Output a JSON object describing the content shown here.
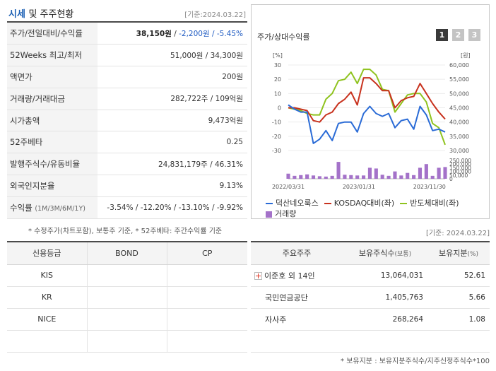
{
  "summary": {
    "title_accent": "시세",
    "title_rest": "및 주주현황",
    "date": "[기준:2024.03.22]",
    "rows": [
      {
        "label": "주가/전일대비/수익률",
        "v1": "38,150원",
        "v2": "-2,200원",
        "v3": "-5.45%"
      },
      {
        "label": "52Weeks 최고/최저",
        "value": "51,000원 / 34,300원"
      },
      {
        "label": "액면가",
        "value": "200원"
      },
      {
        "label": "거래량/거래대금",
        "value": "282,722주 / 109억원"
      },
      {
        "label": "시가총액",
        "value": "9,473억원"
      },
      {
        "label": "52주베타",
        "value": "0.25"
      },
      {
        "label": "발행주식수/유동비율",
        "value": "24,831,179주 / 46.31%"
      },
      {
        "label": "외국인지분율",
        "value": "9.13%"
      },
      {
        "label": "수익률",
        "label_small": "(1M/3M/6M/1Y)",
        "value": "-3.54% / -12.20% / -13.10% / -9.92%"
      }
    ],
    "footnote": "* 수정주가(차트포함), 보통주 기준, * 52주베타: 주간수익률 기준"
  },
  "chart_panel": {
    "title": "주가/상대수익률",
    "tabs": [
      "1",
      "2",
      "3"
    ],
    "legend": {
      "company": "덕산네오룩스",
      "kosdaq": "KOSDAQ대비(좌)",
      "semis": "반도체대비(좌)",
      "volume": "거래량"
    },
    "colors": {
      "company": "#2a6bd6",
      "kosdaq": "#c8321e",
      "semis": "#8fc31f",
      "volume": "#a472c9"
    }
  },
  "chart_data": {
    "type": "line",
    "x_ticks": [
      "2022/03/31",
      "2023/01/31",
      "2023/11/30"
    ],
    "left_axis": {
      "unit": "[%]",
      "ticks": [
        30,
        20,
        10,
        0,
        -10,
        -20,
        -30
      ],
      "range": [
        -30,
        30
      ]
    },
    "right_axis": {
      "unit": "[원]",
      "ticks": [
        60000,
        55000,
        50000,
        45000,
        40000,
        35000,
        30000
      ],
      "range": [
        30000,
        60000
      ]
    },
    "volume_axis": {
      "ticks": [
        250000,
        200000,
        150000,
        100000,
        50000,
        0
      ],
      "range": [
        0,
        250000
      ]
    },
    "series": [
      {
        "name": "덕산네오룩스",
        "axis": "right",
        "values": [
          46000,
          44500,
          43500,
          43500,
          32500,
          34000,
          37000,
          33500,
          39500,
          40000,
          40000,
          36500,
          43000,
          45500,
          43000,
          42000,
          43000,
          38000,
          40500,
          41000,
          37500,
          45500,
          42500,
          37000,
          37500,
          36500
        ]
      },
      {
        "name": "KOSDAQ대비(좌)",
        "axis": "left",
        "values": [
          0,
          0,
          -1,
          -2,
          -9,
          -10,
          -5,
          -3,
          3,
          6,
          11,
          2,
          21,
          21,
          17,
          12,
          12,
          0,
          5,
          7,
          8,
          17,
          10,
          3,
          -3,
          -8
        ]
      },
      {
        "name": "반도체대비(좌)",
        "axis": "left",
        "values": [
          0,
          -1,
          -2,
          -4,
          -5,
          -5,
          6,
          10,
          19,
          20,
          25,
          17,
          27,
          27,
          23,
          13,
          12,
          -3,
          3,
          9,
          10,
          10,
          4,
          -11,
          -14,
          -26
        ]
      },
      {
        "name": "거래량",
        "axis": "volume",
        "type": "bar",
        "values": [
          70000,
          40000,
          50000,
          60000,
          45000,
          35000,
          30000,
          40000,
          230000,
          55000,
          50000,
          45000,
          45000,
          150000,
          140000,
          55000,
          40000,
          100000,
          45000,
          80000,
          50000,
          150000,
          200000,
          40000,
          150000,
          160000
        ]
      }
    ]
  },
  "credit": {
    "headers": [
      "신용등급",
      "BOND",
      "CP"
    ],
    "rows": [
      [
        "KIS",
        "",
        ""
      ],
      [
        "KR",
        "",
        ""
      ],
      [
        "NICE",
        "",
        ""
      ],
      [
        "",
        "",
        ""
      ]
    ]
  },
  "holders": {
    "date": "[기준: 2024.03.22]",
    "headers": {
      "h1": "주요주주",
      "h2": "보유주식수",
      "h2_small": "(보통)",
      "h3": "보유지분",
      "h3_small": "(%)"
    },
    "rows": [
      {
        "name": "이준호 외 14인",
        "shares": "13,064,031",
        "pct": "52.61",
        "expandable": true
      },
      {
        "name": "국민연금공단",
        "shares": "1,405,763",
        "pct": "5.66",
        "expandable": false
      },
      {
        "name": "자사주",
        "shares": "268,264",
        "pct": "1.08",
        "expandable": false
      }
    ],
    "footnote": "* 보유지분 : 보유지분주식수/지주신정주식수*100"
  }
}
